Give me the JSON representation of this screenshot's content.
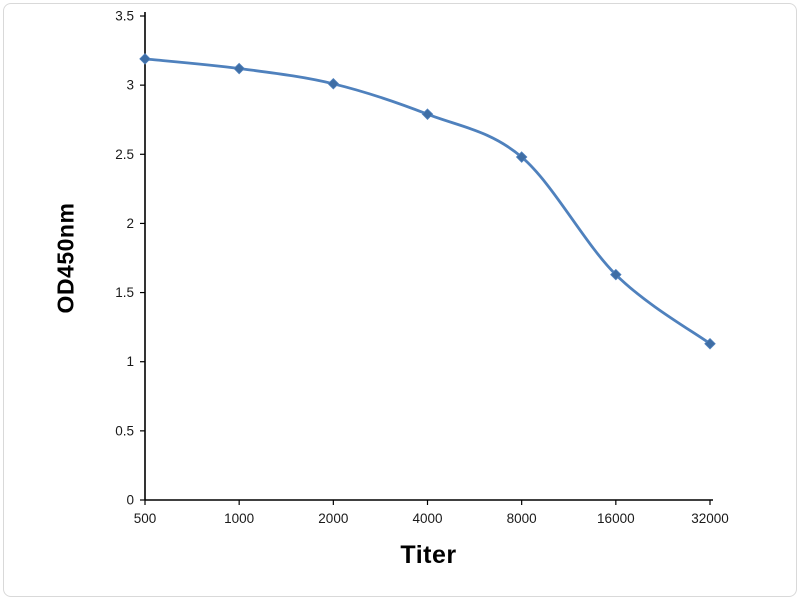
{
  "chart_data": {
    "type": "line",
    "title": "",
    "xlabel": "Titer",
    "ylabel": "OD450nm",
    "categories": [
      "500",
      "1000",
      "2000",
      "4000",
      "8000",
      "16000",
      "32000"
    ],
    "series": [
      {
        "name": "OD450nm",
        "values": [
          3.19,
          3.12,
          3.01,
          2.79,
          2.48,
          1.63,
          1.13
        ]
      }
    ],
    "ylim": [
      0,
      3.5
    ],
    "ytick_step": 0.5,
    "ytick_labels": [
      "0",
      "0.5",
      "1",
      "1.5",
      "2",
      "2.5",
      "3",
      "3.5"
    ],
    "grid": false,
    "legend": "none",
    "line_color": "#4f81bd",
    "marker": "diamond",
    "marker_color": "#3f6ea5",
    "axis_color": "#000000",
    "tick_label_color": "#1a1a1a"
  }
}
